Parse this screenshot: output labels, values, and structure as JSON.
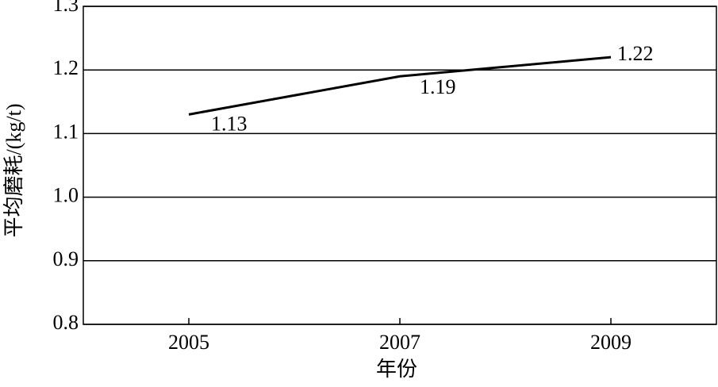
{
  "chart_data": {
    "type": "line",
    "x_label": "年份",
    "y_label": "平均磨耗/(kg/t)",
    "x": [
      2005,
      2007,
      2009
    ],
    "series": [
      {
        "color": "#000000",
        "values": [
          1.13,
          1.19,
          1.22
        ]
      }
    ],
    "xlim": [
      2004,
      2010
    ],
    "xticks": [
      2005,
      2007,
      2009
    ],
    "ylim": [
      0.8,
      1.3
    ],
    "yticks": [
      0.8,
      0.9,
      {
        "value": 1,
        "label": "1.0"
      },
      1.1,
      1.2,
      1.3
    ],
    "grid": true
  }
}
